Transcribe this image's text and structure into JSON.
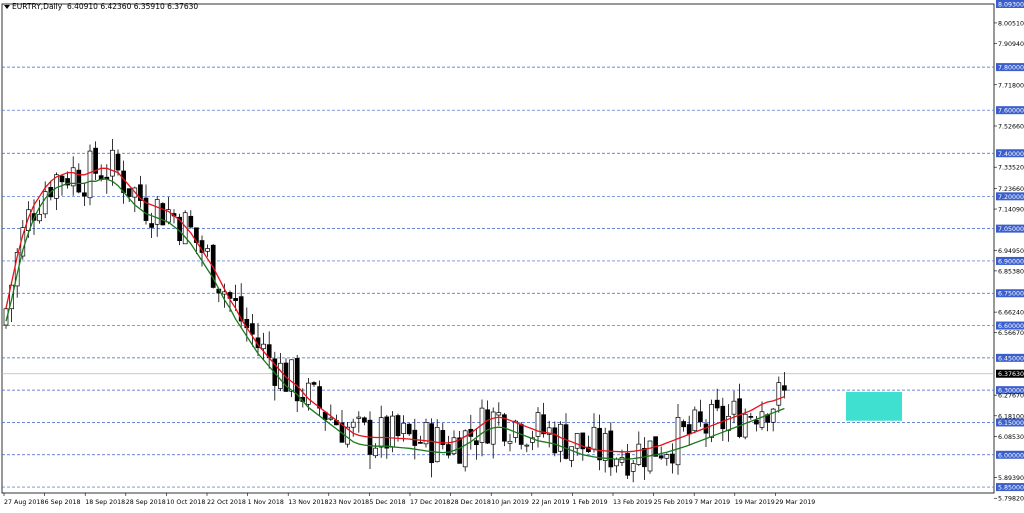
{
  "chart_data": {
    "type": "candlestick",
    "symbol": "EURTRY,Daily",
    "ohlc_readout": "6.40910 6.42360 6.35910 6.37630",
    "current_price": 6.3763,
    "current_price_label": "6.37630",
    "ylim": [
      5.8225,
      8.093
    ],
    "y_ticks": [
      {
        "value": 8.093,
        "label": "8.09300",
        "highlight": true
      },
      {
        "value": 8.0051,
        "label": "8.00510"
      },
      {
        "value": 7.9094,
        "label": "7.90940"
      },
      {
        "value": 7.8,
        "label": "7.80000",
        "highlight": true
      },
      {
        "value": 7.718,
        "label": "7.71800"
      },
      {
        "value": 7.6,
        "label": "7.60000",
        "highlight": true
      },
      {
        "value": 7.5266,
        "label": "7.52660"
      },
      {
        "value": 7.4,
        "label": "7.40000",
        "highlight": true
      },
      {
        "value": 7.3352,
        "label": "7.33520"
      },
      {
        "value": 7.2366,
        "label": "7.23660"
      },
      {
        "value": 7.2,
        "label": "7.20000",
        "highlight": true
      },
      {
        "value": 7.1409,
        "label": "7.14090"
      },
      {
        "value": 7.05,
        "label": "7.05000",
        "highlight": true
      },
      {
        "value": 6.9495,
        "label": "6.94950"
      },
      {
        "value": 6.9,
        "label": "6.90000",
        "highlight": true
      },
      {
        "value": 6.8538,
        "label": "6.85380"
      },
      {
        "value": 6.75,
        "label": "6.75000",
        "highlight": true
      },
      {
        "value": 6.6624,
        "label": "6.66240"
      },
      {
        "value": 6.6,
        "label": "6.60000",
        "highlight": true
      },
      {
        "value": 6.5667,
        "label": "6.56670"
      },
      {
        "value": 6.45,
        "label": "6.45000",
        "highlight": true
      },
      {
        "value": 6.3,
        "label": "6.30000",
        "highlight": true
      },
      {
        "value": 6.2767,
        "label": "6.27670"
      },
      {
        "value": 6.181,
        "label": "6.18100"
      },
      {
        "value": 6.15,
        "label": "6.15000",
        "highlight": true
      },
      {
        "value": 6.0853,
        "label": "6.08530"
      },
      {
        "value": 6.0,
        "label": "6.00000",
        "highlight": true
      },
      {
        "value": 5.8939,
        "label": "5.89390"
      },
      {
        "value": 5.85,
        "label": "5.85000",
        "highlight": true
      },
      {
        "value": 5.7982,
        "label": "5.79820"
      }
    ],
    "horizontal_levels": [
      7.8,
      7.6,
      7.4,
      7.2,
      7.05,
      6.9,
      6.75,
      6.6,
      6.45,
      6.3,
      6.15,
      6.0,
      5.85
    ],
    "x_labels": [
      "27 Aug 2018",
      "6 Sep 2018",
      "18 Sep 2018",
      "28 Sep 2018",
      "10 Oct 2018",
      "22 Oct 2018",
      "1 Nov 2018",
      "13 Nov 2018",
      "23 Nov 2018",
      "5 Dec 2018",
      "17 Dec 2018",
      "28 Dec 2018",
      "10 Jan 2019",
      "22 Jan 2019",
      "1 Feb 2019",
      "13 Feb 2019",
      "25 Feb 2019",
      "7 Mar 2019",
      "19 Mar 2019",
      "29 Mar 2019"
    ],
    "highlight_zone": {
      "y_top": 6.292,
      "y_bottom": 6.158,
      "start_bar": 150,
      "end_bar": 160,
      "color": "#40E0D0"
    },
    "series": [
      {
        "type": "candles",
        "bull_color": "#ffffff",
        "bear_color": "#000000"
      },
      {
        "type": "line",
        "color": "#e8101a",
        "values": [
          6.68,
          6.8,
          6.92,
          7.02,
          7.1,
          7.16,
          7.2,
          7.24,
          7.27,
          7.29,
          7.3,
          7.31,
          7.31,
          7.3,
          7.3,
          7.31,
          7.32,
          7.33,
          7.33,
          7.32,
          7.31,
          7.28,
          7.25,
          7.22,
          7.19,
          7.17,
          7.16,
          7.15,
          7.14,
          7.13,
          7.11,
          7.09,
          7.06,
          7.03,
          6.99,
          6.95,
          6.91,
          6.87,
          6.82,
          6.77,
          6.72,
          6.68,
          6.63,
          6.59,
          6.55,
          6.51,
          6.48,
          6.45,
          6.42,
          6.39,
          6.36,
          6.34,
          6.32,
          6.29,
          6.26,
          6.24,
          6.22,
          6.2,
          6.18,
          6.16,
          6.14,
          6.12,
          6.1,
          6.09,
          6.085,
          6.082,
          6.08,
          6.08,
          6.08,
          6.078,
          6.076,
          6.075,
          6.073,
          6.07,
          6.068,
          6.065,
          6.062,
          6.058,
          6.055,
          6.055,
          6.06,
          6.07,
          6.085,
          6.1,
          6.12,
          6.14,
          6.16,
          6.17,
          6.175,
          6.17,
          6.16,
          6.15,
          6.14,
          6.13,
          6.12,
          6.11,
          6.105,
          6.1,
          6.095,
          6.08,
          6.07,
          6.06,
          6.05,
          6.04,
          6.03,
          6.025,
          6.02,
          6.018,
          6.016,
          6.015,
          6.014,
          6.014,
          6.016,
          6.02,
          6.025,
          6.03,
          6.038,
          6.045,
          6.055,
          6.065,
          6.075,
          6.085,
          6.095,
          6.105,
          6.115,
          6.125,
          6.135,
          6.145,
          6.155,
          6.165,
          6.175,
          6.185,
          6.195,
          6.205,
          6.22,
          6.235,
          6.245,
          6.25,
          6.26,
          6.27
        ]
      },
      {
        "type": "line",
        "color": "#1a7a1a",
        "values": [
          6.62,
          6.72,
          6.84,
          6.95,
          7.03,
          7.1,
          7.15,
          7.19,
          7.22,
          7.24,
          7.25,
          7.26,
          7.26,
          7.26,
          7.26,
          7.27,
          7.27,
          7.28,
          7.28,
          7.27,
          7.25,
          7.22,
          7.19,
          7.16,
          7.14,
          7.12,
          7.11,
          7.1,
          7.09,
          7.08,
          7.06,
          7.04,
          7.01,
          6.98,
          6.94,
          6.9,
          6.86,
          6.82,
          6.77,
          6.72,
          6.68,
          6.63,
          6.59,
          6.55,
          6.51,
          6.47,
          6.44,
          6.41,
          6.38,
          6.35,
          6.32,
          6.3,
          6.28,
          6.25,
          6.22,
          6.2,
          6.18,
          6.16,
          6.14,
          6.12,
          6.1,
          6.08,
          6.06,
          6.05,
          6.045,
          6.042,
          6.04,
          6.04,
          6.04,
          6.037,
          6.034,
          6.032,
          6.03,
          6.026,
          6.022,
          6.018,
          6.015,
          6.012,
          6.01,
          6.012,
          6.02,
          6.03,
          6.045,
          6.06,
          6.08,
          6.1,
          6.115,
          6.125,
          6.128,
          6.125,
          6.115,
          6.105,
          6.095,
          6.085,
          6.075,
          6.065,
          6.06,
          6.055,
          6.05,
          6.04,
          6.03,
          6.02,
          6.01,
          6.0,
          5.995,
          5.99,
          5.986,
          5.984,
          5.982,
          5.98,
          5.98,
          5.98,
          5.982,
          5.986,
          5.99,
          5.995,
          6.0,
          6.006,
          6.012,
          6.02,
          6.028,
          6.036,
          6.045,
          6.055,
          6.065,
          6.075,
          6.085,
          6.095,
          6.105,
          6.115,
          6.125,
          6.135,
          6.145,
          6.155,
          6.165,
          6.175,
          6.185,
          6.195,
          6.205,
          6.215
        ]
      }
    ]
  }
}
